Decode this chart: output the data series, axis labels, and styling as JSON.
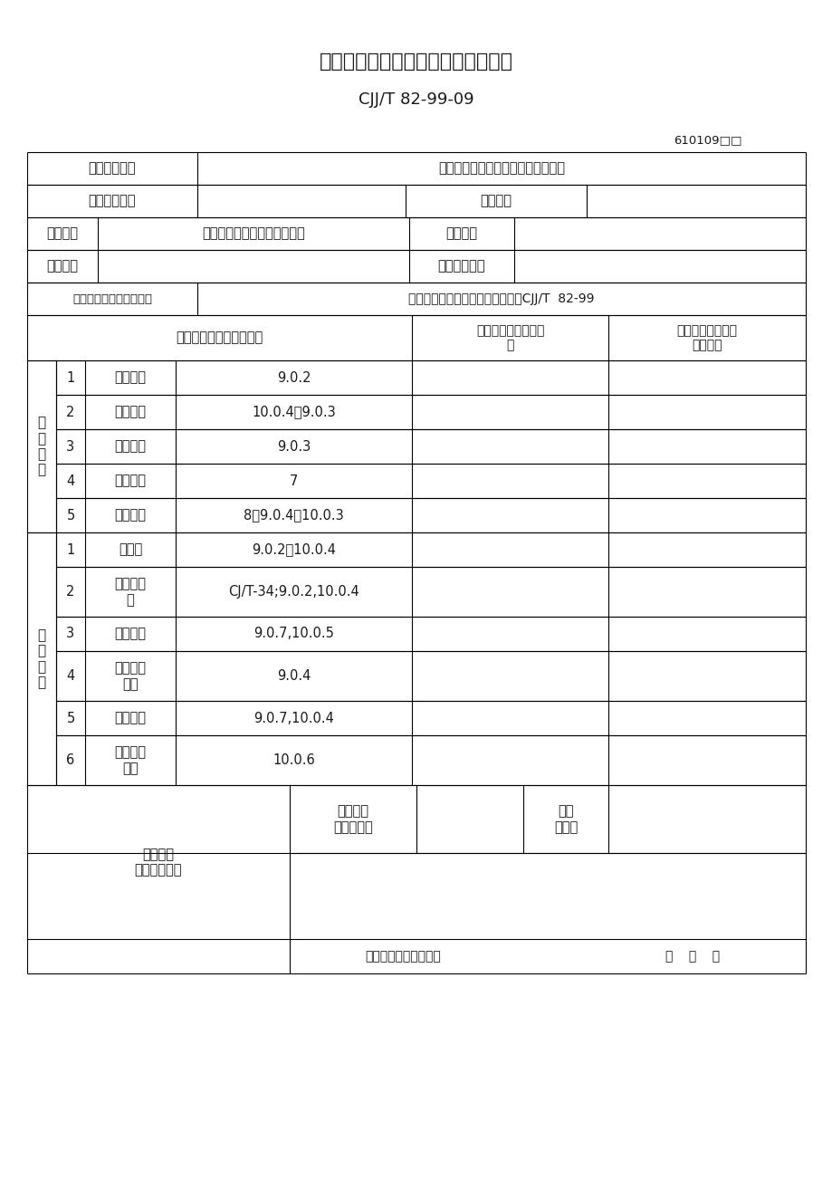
{
  "title": "树木栽植工程检验批质量验收记录表",
  "subtitle": "CJJ/T 82-99-09",
  "code": "610109□□",
  "row1_label": "单位工程名称",
  "row1_value": "郑州市西北环道路景观综合整治工程",
  "row2_label": "分部工程名称",
  "row2_right_label": "验收部位",
  "row3_label1": "施工单位",
  "row3_value1": "北京克劳沃草业技术开发中心",
  "row3_label2": "项目经理",
  "row4_label1": "分包单位",
  "row4_label2": "分包项目经理",
  "row5_label": "施工执行标准名称及编号",
  "row5_value": "《城市绿化工程施工及验收规范》CJJ/T  82-99",
  "col_header1": "施工质量验收规范的规定",
  "col_header2": "施工单位检查评定记\n录",
  "col_header3": "监理（建设）单位\n验收记录",
  "main_label": "主\n控\n项\n目",
  "main_items": [
    {
      "num": "1",
      "name": "根系舒展",
      "standard": "9.0.2"
    },
    {
      "num": "2",
      "name": "土球密实",
      "standard": "10.0.4～9.0.3"
    },
    {
      "num": "3",
      "name": "栽植深度",
      "standard": "9.0.3"
    },
    {
      "num": "4",
      "name": "苗木运输",
      "standard": "7"
    },
    {
      "num": "5",
      "name": "苗木修剪",
      "standard": "8，9.0.4，10.0.3"
    }
  ],
  "gen_label": "一\n般\n项\n目",
  "gen_items": [
    {
      "num": "1",
      "name": "观赏性",
      "standard": "9.0.2，10.0.4"
    },
    {
      "num": "2",
      "name": "包装及处\n理",
      "standard": "CJ/T-34;9.0.2,10.0.4"
    },
    {
      "num": "3",
      "name": "枝后浇水",
      "standard": "9.0.7,10.0.5"
    },
    {
      "num": "4",
      "name": "其他技术\n措施",
      "standard": "9.0.4"
    },
    {
      "num": "5",
      "name": "支撑固定",
      "standard": "9.0.7,10.0.4"
    },
    {
      "num": "6",
      "name": "大树技术\n档案",
      "standard": "10.0.6"
    }
  ],
  "footer_left": "施工单位\n检查评定结果",
  "footer_mid1": "专业工长\n（施工员）",
  "footer_mid2": "施工\n班组长",
  "footer_date_left": "项目专业质量检察员：",
  "footer_date_right": "年    月    日",
  "main_row_heights": [
    38,
    38,
    38,
    38,
    38
  ],
  "gen_row_heights": [
    38,
    55,
    38,
    55,
    38,
    55
  ],
  "bg_color": "#ffffff",
  "line_color": "#000000",
  "text_color": "#1a1a1a"
}
